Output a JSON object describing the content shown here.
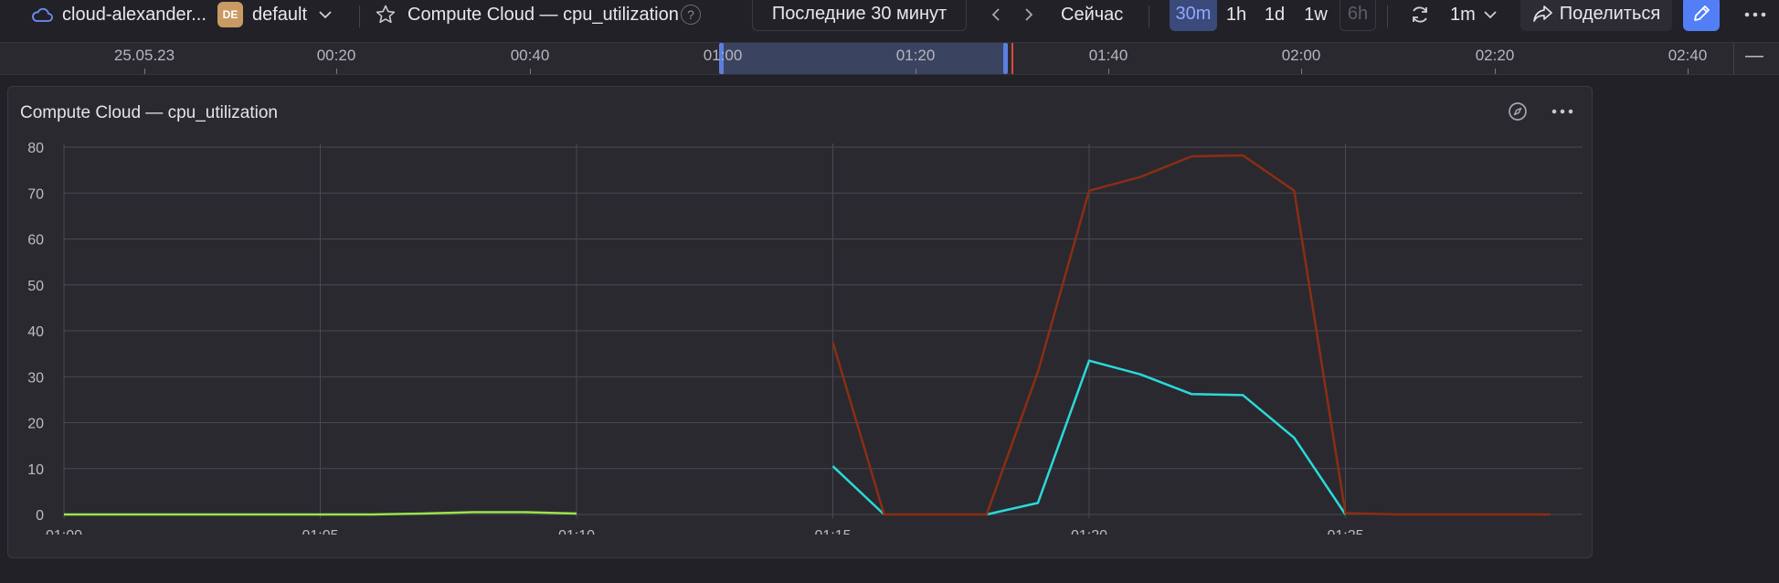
{
  "topbar": {
    "cloud_name": "cloud-alexander...",
    "folder_badge": "DE",
    "folder_name": "default",
    "dashboard_title": "Compute Cloud — cpu_utilization",
    "help_label": "?",
    "time_range": "Последние 30 минут",
    "now_label": "Сейчас",
    "presets": [
      {
        "label": "30m",
        "state": "active"
      },
      {
        "label": "1h",
        "state": "normal"
      },
      {
        "label": "1d",
        "state": "normal"
      },
      {
        "label": "1w",
        "state": "normal"
      },
      {
        "label": "6h",
        "state": "disabled"
      }
    ],
    "refresh_interval": "1m",
    "share_label": "Поделиться",
    "icons": [
      "cloud-icon",
      "chevron-down-icon",
      "star-icon",
      "help-icon",
      "chevron-left-icon",
      "chevron-right-icon",
      "refresh-icon",
      "share-icon",
      "pencil-icon",
      "more-icon"
    ]
  },
  "timeline": {
    "labels": [
      "25.05.23",
      "00:20",
      "00:40",
      "01:00",
      "01:20",
      "01:40",
      "02:00",
      "02:20",
      "02:40"
    ],
    "collapse_label": "—"
  },
  "panel": {
    "title": "Compute Cloud — cpu_utilization",
    "icons": [
      "compass-icon",
      "more-icon"
    ]
  },
  "colors": {
    "accent": "#527ff6",
    "series_green": "#9be34a",
    "series_cyan": "#2bd9d9",
    "series_brown": "#8b2e12"
  },
  "chart_data": {
    "type": "line",
    "title": "",
    "xlabel": "",
    "ylabel": "",
    "x_ticks": [
      "01:00",
      "01:05",
      "01:10",
      "01:15",
      "01:20",
      "01:25"
    ],
    "x_range": [
      "01:00",
      "01:29"
    ],
    "ylim": [
      0,
      80
    ],
    "y_ticks": [
      0,
      10,
      20,
      30,
      40,
      50,
      60,
      70,
      80
    ],
    "grid": true,
    "legend": "none",
    "series": [
      {
        "color": "#9be34a",
        "points": [
          [
            "01:00",
            0
          ],
          [
            "01:02",
            0
          ],
          [
            "01:04",
            0
          ],
          [
            "01:06",
            0
          ],
          [
            "01:07",
            0.2
          ],
          [
            "01:08",
            0.5
          ],
          [
            "01:09",
            0.5
          ],
          [
            "01:10",
            0.2
          ]
        ]
      },
      {
        "color": "#2bd9d9",
        "points": [
          [
            "01:15",
            10.5
          ],
          [
            "01:16",
            0
          ]
        ]
      },
      {
        "color": "#2bd9d9",
        "points": [
          [
            "01:18",
            0
          ],
          [
            "01:19",
            2.5
          ],
          [
            "01:20",
            33.5
          ],
          [
            "01:21",
            30.5
          ],
          [
            "01:22",
            26.2
          ],
          [
            "01:23",
            26
          ],
          [
            "01:24",
            16.7
          ],
          [
            "01:25",
            0
          ]
        ]
      },
      {
        "color": "#8b2e12",
        "points": [
          [
            "01:15",
            37.5
          ],
          [
            "01:16",
            0
          ],
          [
            "01:18",
            0
          ],
          [
            "01:19",
            31
          ],
          [
            "01:20",
            70.5
          ],
          [
            "01:21",
            73.5
          ],
          [
            "01:22",
            78
          ],
          [
            "01:23",
            78.2
          ],
          [
            "01:24",
            70.5
          ],
          [
            "01:25",
            0.3
          ],
          [
            "01:26",
            0
          ],
          [
            "01:28",
            0
          ],
          [
            "01:29",
            0
          ]
        ]
      }
    ]
  }
}
